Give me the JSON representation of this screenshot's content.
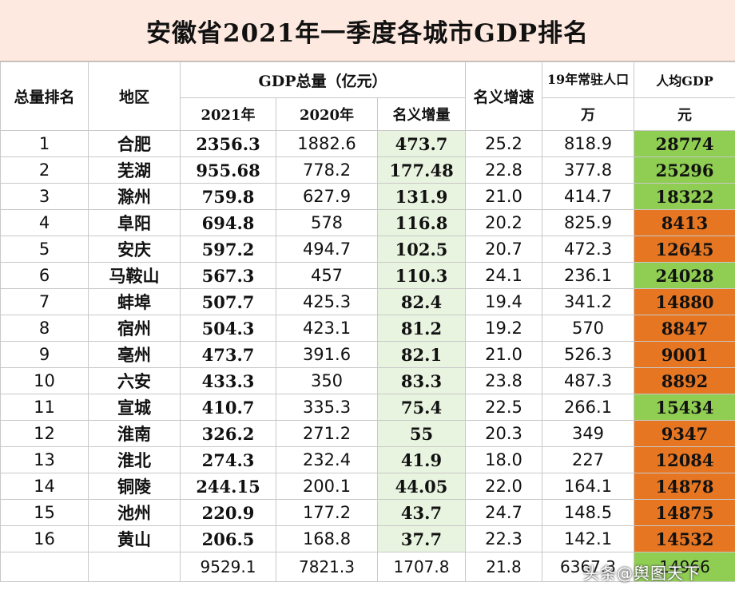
{
  "title": "安徽省2021年一季度各城市GDP排名",
  "headers": {
    "rank": "总量排名",
    "region": "地区",
    "gdp_total": "GDP总量（亿元）",
    "y2021": "2021年",
    "y2020": "2020年",
    "increase": "名义增量",
    "growth": "名义增速",
    "population": "19年常驻人口",
    "population_unit": "万",
    "per_capita": "人均GDP",
    "per_capita_unit": "元"
  },
  "rows": [
    {
      "rank": "1",
      "city": "合肥",
      "gdp2021": "2356.3",
      "gdp2020": "1882.6",
      "increase": "473.7",
      "growth": "25.2",
      "population": "818.9",
      "per_capita": "28774",
      "pc_color": "green"
    },
    {
      "rank": "2",
      "city": "芜湖",
      "gdp2021": "955.68",
      "gdp2020": "778.2",
      "increase": "177.48",
      "growth": "22.8",
      "population": "377.8",
      "per_capita": "25296",
      "pc_color": "green"
    },
    {
      "rank": "3",
      "city": "滁州",
      "gdp2021": "759.8",
      "gdp2020": "627.9",
      "increase": "131.9",
      "growth": "21.0",
      "population": "414.7",
      "per_capita": "18322",
      "pc_color": "green"
    },
    {
      "rank": "4",
      "city": "阜阳",
      "gdp2021": "694.8",
      "gdp2020": "578",
      "increase": "116.8",
      "growth": "20.2",
      "population": "825.9",
      "per_capita": "8413",
      "pc_color": "orange"
    },
    {
      "rank": "5",
      "city": "安庆",
      "gdp2021": "597.2",
      "gdp2020": "494.7",
      "increase": "102.5",
      "growth": "20.7",
      "population": "472.3",
      "per_capita": "12645",
      "pc_color": "orange"
    },
    {
      "rank": "6",
      "city": "马鞍山",
      "gdp2021": "567.3",
      "gdp2020": "457",
      "increase": "110.3",
      "growth": "24.1",
      "population": "236.1",
      "per_capita": "24028",
      "pc_color": "green"
    },
    {
      "rank": "7",
      "city": "蚌埠",
      "gdp2021": "507.7",
      "gdp2020": "425.3",
      "increase": "82.4",
      "growth": "19.4",
      "population": "341.2",
      "per_capita": "14880",
      "pc_color": "orange"
    },
    {
      "rank": "8",
      "city": "宿州",
      "gdp2021": "504.3",
      "gdp2020": "423.1",
      "increase": "81.2",
      "growth": "19.2",
      "population": "570",
      "per_capita": "8847",
      "pc_color": "orange"
    },
    {
      "rank": "9",
      "city": "亳州",
      "gdp2021": "473.7",
      "gdp2020": "391.6",
      "increase": "82.1",
      "growth": "21.0",
      "population": "526.3",
      "per_capita": "9001",
      "pc_color": "orange"
    },
    {
      "rank": "10",
      "city": "六安",
      "gdp2021": "433.3",
      "gdp2020": "350",
      "increase": "83.3",
      "growth": "23.8",
      "population": "487.3",
      "per_capita": "8892",
      "pc_color": "orange"
    },
    {
      "rank": "11",
      "city": "宣城",
      "gdp2021": "410.7",
      "gdp2020": "335.3",
      "increase": "75.4",
      "growth": "22.5",
      "population": "266.1",
      "per_capita": "15434",
      "pc_color": "green"
    },
    {
      "rank": "12",
      "city": "淮南",
      "gdp2021": "326.2",
      "gdp2020": "271.2",
      "increase": "55",
      "growth": "20.3",
      "population": "349",
      "per_capita": "9347",
      "pc_color": "orange"
    },
    {
      "rank": "13",
      "city": "淮北",
      "gdp2021": "274.3",
      "gdp2020": "232.4",
      "increase": "41.9",
      "growth": "18.0",
      "population": "227",
      "per_capita": "12084",
      "pc_color": "orange"
    },
    {
      "rank": "14",
      "city": "铜陵",
      "gdp2021": "244.15",
      "gdp2020": "200.1",
      "increase": "44.05",
      "growth": "22.0",
      "population": "164.1",
      "per_capita": "14878",
      "pc_color": "orange"
    },
    {
      "rank": "15",
      "city": "池州",
      "gdp2021": "220.9",
      "gdp2020": "177.2",
      "increase": "43.7",
      "growth": "24.7",
      "population": "148.5",
      "per_capita": "14875",
      "pc_color": "orange"
    },
    {
      "rank": "16",
      "city": "黄山",
      "gdp2021": "206.5",
      "gdp2020": "168.8",
      "increase": "37.7",
      "growth": "22.3",
      "population": "142.1",
      "per_capita": "14532",
      "pc_color": "orange"
    }
  ],
  "total": {
    "gdp2021": "9529.1",
    "gdp2020": "7821.3",
    "increase": "1707.8",
    "growth": "21.8",
    "population": "6367.3",
    "per_capita": "14966"
  },
  "watermark": "头条@舆图天下"
}
